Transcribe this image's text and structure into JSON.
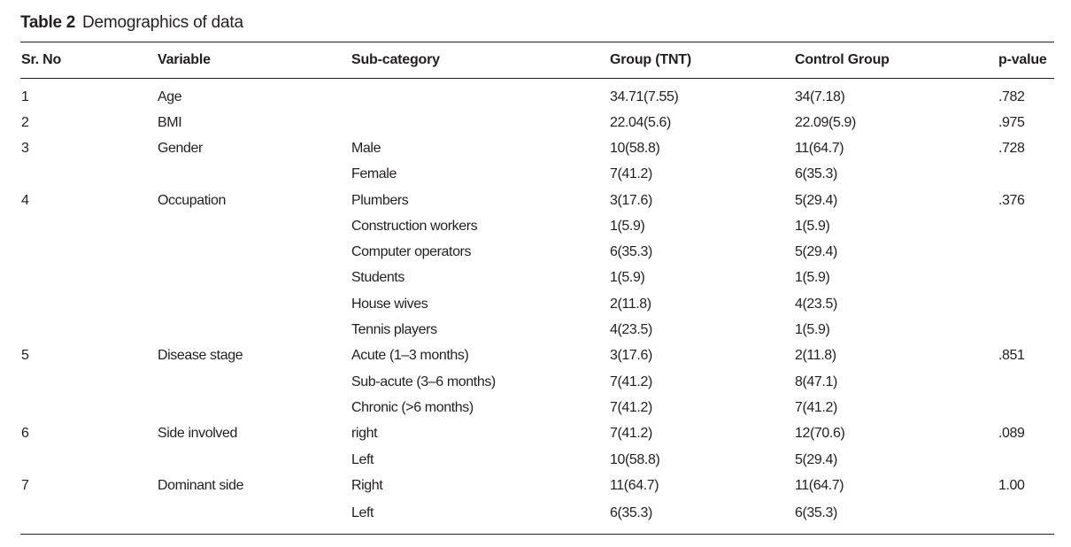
{
  "caption": {
    "label": "Table 2",
    "title": "Demographics of data"
  },
  "columns": [
    "Sr. No",
    "Variable",
    "Sub-category",
    "Group (TNT)",
    "Control Group",
    "p-value"
  ],
  "rows": [
    [
      "1",
      "Age",
      "",
      "34.71(7.55)",
      "34(7.18)",
      ".782"
    ],
    [
      "2",
      "BMI",
      "",
      "22.04(5.6)",
      "22.09(5.9)",
      ".975"
    ],
    [
      "3",
      "Gender",
      "Male",
      "10(58.8)",
      "11(64.7)",
      ".728"
    ],
    [
      "",
      "",
      "Female",
      "7(41.2)",
      "6(35.3)",
      ""
    ],
    [
      "4",
      "Occupation",
      "Plumbers",
      "3(17.6)",
      "5(29.4)",
      ".376"
    ],
    [
      "",
      "",
      "Construction workers",
      "1(5.9)",
      "1(5.9)",
      ""
    ],
    [
      "",
      "",
      "Computer operators",
      "6(35.3)",
      "5(29.4)",
      ""
    ],
    [
      "",
      "",
      "Students",
      "1(5.9)",
      "1(5.9)",
      ""
    ],
    [
      "",
      "",
      "House wives",
      "2(11.8)",
      "4(23.5)",
      ""
    ],
    [
      "",
      "",
      "Tennis players",
      "4(23.5)",
      "1(5.9)",
      ""
    ],
    [
      "5",
      "Disease stage",
      "Acute (1–3 months)",
      "3(17.6)",
      "2(11.8)",
      ".851"
    ],
    [
      "",
      "",
      "Sub-acute (3–6 months)",
      "7(41.2)",
      "8(47.1)",
      ""
    ],
    [
      "",
      "",
      "Chronic (>6 months)",
      "7(41.2)",
      "7(41.2)",
      ""
    ],
    [
      "6",
      "Side involved",
      "right",
      "7(41.2)",
      "12(70.6)",
      ".089"
    ],
    [
      "",
      "",
      "Left",
      "10(58.8)",
      "5(29.4)",
      ""
    ],
    [
      "7",
      "Dominant side",
      "Right",
      "11(64.7)",
      "11(64.7)",
      "1.00"
    ],
    [
      "",
      "",
      "Left",
      "6(35.3)",
      "6(35.3)",
      ""
    ]
  ]
}
